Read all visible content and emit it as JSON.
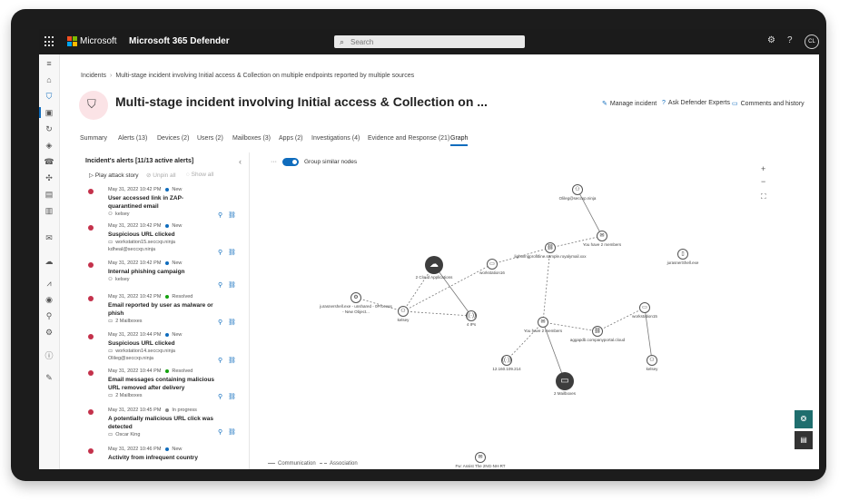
{
  "topbar": {
    "brand": "Microsoft",
    "product": "Microsoft 365 Defender",
    "search_placeholder": "Search",
    "avatar": "CL"
  },
  "breadcrumb": {
    "root": "Incidents",
    "current": "Multi-stage incident involving Initial access & Collection on multiple endpoints reported by multiple sources"
  },
  "incident": {
    "title": "Multi-stage incident involving Initial access & Collection on ...",
    "actions": {
      "manage": "Manage incident",
      "ask": "Ask Defender Experts",
      "comments": "Comments and history"
    }
  },
  "tabs": [
    {
      "label": "Summary"
    },
    {
      "label": "Alerts (13)"
    },
    {
      "label": "Devices (2)"
    },
    {
      "label": "Users (2)"
    },
    {
      "label": "Mailboxes (3)"
    },
    {
      "label": "Apps (2)"
    },
    {
      "label": "Investigations (4)"
    },
    {
      "label": "Evidence and Response (21)"
    },
    {
      "label": "Graph"
    }
  ],
  "alerts_panel": {
    "title": "Incident's alerts [11/13 active alerts]",
    "play": "Play attack story",
    "unpin": "Unpin all",
    "show": "Show all",
    "alerts": [
      {
        "time": "May 31, 2022 10:42 PM",
        "status": "New",
        "status_color": "#0f6cbd",
        "name": "User accessed link in ZAP-quarantined email",
        "entities": [
          "kelsey"
        ]
      },
      {
        "time": "May 31, 2022 10:42 PM",
        "status": "New",
        "status_color": "#0f6cbd",
        "name": "Suspicious URL clicked",
        "entities": [
          "workstation15.seccxp.ninja",
          "kdheal@seccxp.ninja"
        ]
      },
      {
        "time": "May 31, 2022 10:42 PM",
        "status": "New",
        "status_color": "#0f6cbd",
        "name": "Internal phishing campaign",
        "entities": [
          "kelsey"
        ]
      },
      {
        "time": "May 31, 2022 10:42 PM",
        "status": "Resolved",
        "status_color": "#13a10e",
        "name": "Email reported by user as malware or phish",
        "entities": [
          "2 Mailboxes"
        ]
      },
      {
        "time": "May 31, 2022 10:44 PM",
        "status": "New",
        "status_color": "#0f6cbd",
        "name": "Suspicious URL clicked",
        "entities": [
          "workstation14.seccxp.ninja",
          "Olileg@seccxp.ninja"
        ]
      },
      {
        "time": "May 31, 2022 10:44 PM",
        "status": "Resolved",
        "status_color": "#13a10e",
        "name": "Email messages containing malicious URL removed after delivery",
        "entities": [
          "2 Mailboxes"
        ]
      },
      {
        "time": "May 31, 2022 10:45 PM",
        "status": "In progress",
        "status_color": "#8a8a8a",
        "name": "A potentially malicious URL click was detected",
        "entities": [
          "Oscar King"
        ]
      },
      {
        "time": "May 31, 2022 10:46 PM",
        "status": "New",
        "status_color": "#0f6cbd",
        "name": "Activity from infrequent country",
        "entities": []
      }
    ]
  },
  "graph": {
    "toggle_label": "Group similar nodes",
    "legend": {
      "communication": "Communication",
      "association": "Association"
    },
    "nodes": [
      {
        "id": "olileg",
        "label": "Olileg@seccxp.ninja",
        "icon": "user-icon",
        "big": false
      },
      {
        "id": "mail1",
        "label": "You have 2 members",
        "icon": "mail-icon",
        "big": false
      },
      {
        "id": "url",
        "label": "lightningprofitline.sample.royalymail.xxx",
        "icon": "url-icon",
        "big": false
      },
      {
        "id": "ws16",
        "label": "workstation16",
        "icon": "device-icon",
        "big": false
      },
      {
        "id": "cloud",
        "label": "2 Cloud Applications",
        "icon": "cloud-icon",
        "big": true
      },
      {
        "id": "file",
        "label": "jurasnerShell.exe",
        "icon": "file-icon",
        "big": false
      },
      {
        "id": "proc",
        "label": "jurasnershell.exe - unshared - 0Process - New Object...",
        "icon": "process-icon",
        "big": false
      },
      {
        "id": "kelsey",
        "label": "kelsey",
        "icon": "user-icon",
        "big": false
      },
      {
        "id": "ips",
        "label": "4 IPs",
        "icon": "ip-icon",
        "big": false
      },
      {
        "id": "ws15",
        "label": "workstation15",
        "icon": "device-icon",
        "big": false
      },
      {
        "id": "mail2",
        "label": "You have 2 members",
        "icon": "mail-icon",
        "big": false
      },
      {
        "id": "url2",
        "label": "aggapdb.companyportal.cloud",
        "icon": "url-icon",
        "big": false
      },
      {
        "id": "ip",
        "label": "12.160.109.214",
        "icon": "ip-icon",
        "big": false
      },
      {
        "id": "mailboxes",
        "label": "2 Mailboxes",
        "icon": "mailbox-icon",
        "big": true
      },
      {
        "id": "kelsey2",
        "label": "kelsey",
        "icon": "user-icon",
        "big": false
      },
      {
        "id": "mail3",
        "label": "Fw: Assist The 2NG-NH-RT",
        "icon": "mail-icon",
        "big": false
      }
    ]
  }
}
